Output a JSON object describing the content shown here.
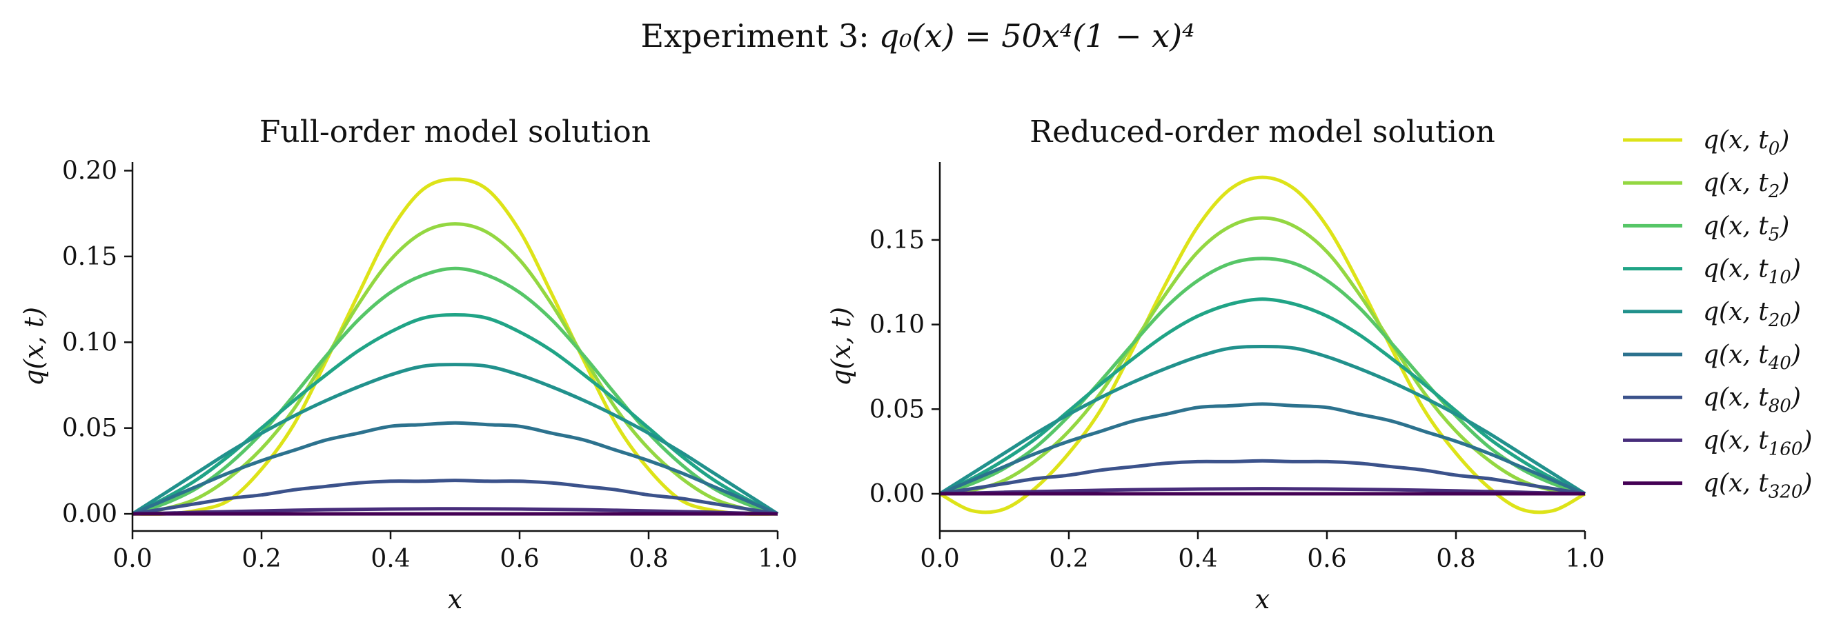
{
  "figure": {
    "suptitle": "Experiment 3:",
    "suptitle_formula": "q₀(x) = 50x⁴(1 − x)⁴"
  },
  "legend": {
    "location": "right, outside",
    "entries": [
      {
        "label": "q(x, t0)",
        "base": "q(x, t",
        "sub": "0",
        "color": "#dde318"
      },
      {
        "label": "q(x, t2)",
        "base": "q(x, t",
        "sub": "2",
        "color": "#93d741"
      },
      {
        "label": "q(x, t5)",
        "base": "q(x, t",
        "sub": "5",
        "color": "#56c667"
      },
      {
        "label": "q(x, t10)",
        "base": "q(x, t",
        "sub": "10",
        "color": "#20a486"
      },
      {
        "label": "q(x, t20)",
        "base": "q(x, t",
        "sub": "20",
        "color": "#21918c"
      },
      {
        "label": "q(x, t40)",
        "base": "q(x, t",
        "sub": "40",
        "color": "#2c728e"
      },
      {
        "label": "q(x, t80)",
        "base": "q(x, t",
        "sub": "80",
        "color": "#3b528b"
      },
      {
        "label": "q(x, t160)",
        "base": "q(x, t",
        "sub": "160",
        "color": "#472d7b"
      },
      {
        "label": "q(x, t320)",
        "base": "q(x, t",
        "sub": "320",
        "color": "#440154"
      }
    ]
  },
  "chart_data": [
    {
      "type": "line",
      "title": "Full-order model solution",
      "xlabel": "x",
      "ylabel": "q(x, t)",
      "xlim": [
        0.0,
        1.0
      ],
      "ylim": [
        -0.01,
        0.205
      ],
      "xticks": [
        "0.0",
        "0.2",
        "0.4",
        "0.6",
        "0.8",
        "1.0"
      ],
      "yticks": [
        "0.00",
        "0.05",
        "0.10",
        "0.15",
        "0.20"
      ],
      "x": [
        0.0,
        0.05,
        0.1,
        0.15,
        0.2,
        0.25,
        0.3,
        0.35,
        0.4,
        0.45,
        0.5,
        0.55,
        0.6,
        0.65,
        0.7,
        0.75,
        0.8,
        0.85,
        0.9,
        0.95,
        1.0
      ],
      "series": [
        {
          "name": "q(x, t0)",
          "values": [
            0.0,
            0.0,
            0.002,
            0.008,
            0.026,
            0.052,
            0.089,
            0.128,
            0.165,
            0.189,
            0.195,
            0.189,
            0.165,
            0.128,
            0.089,
            0.052,
            0.026,
            0.008,
            0.002,
            0.0,
            0.0
          ]
        },
        {
          "name": "q(x, t2)",
          "values": [
            0.0,
            0.003,
            0.009,
            0.021,
            0.038,
            0.061,
            0.091,
            0.122,
            0.148,
            0.164,
            0.169,
            0.164,
            0.148,
            0.122,
            0.091,
            0.061,
            0.038,
            0.021,
            0.009,
            0.003,
            0.0
          ]
        },
        {
          "name": "q(x, t5)",
          "values": [
            0.0,
            0.006,
            0.015,
            0.029,
            0.047,
            0.069,
            0.092,
            0.113,
            0.129,
            0.139,
            0.143,
            0.139,
            0.129,
            0.113,
            0.092,
            0.069,
            0.047,
            0.029,
            0.015,
            0.006,
            0.0
          ]
        },
        {
          "name": "q(x, t10)",
          "values": [
            0.0,
            0.009,
            0.02,
            0.034,
            0.05,
            0.066,
            0.081,
            0.095,
            0.106,
            0.114,
            0.116,
            0.114,
            0.106,
            0.095,
            0.081,
            0.066,
            0.05,
            0.034,
            0.02,
            0.009,
            0.0
          ]
        },
        {
          "name": "q(x, t20)",
          "values": [
            0.0,
            0.012,
            0.024,
            0.036,
            0.047,
            0.057,
            0.066,
            0.074,
            0.081,
            0.086,
            0.087,
            0.086,
            0.081,
            0.074,
            0.066,
            0.057,
            0.047,
            0.036,
            0.024,
            0.012,
            0.0
          ]
        },
        {
          "name": "q(x, t40)",
          "values": [
            0.0,
            0.008,
            0.016,
            0.024,
            0.031,
            0.037,
            0.043,
            0.047,
            0.051,
            0.052,
            0.053,
            0.052,
            0.051,
            0.047,
            0.043,
            0.037,
            0.031,
            0.024,
            0.016,
            0.008,
            0.0
          ]
        },
        {
          "name": "q(x, t80)",
          "values": [
            0.0,
            0.003,
            0.006,
            0.009,
            0.011,
            0.014,
            0.016,
            0.018,
            0.019,
            0.019,
            0.0195,
            0.019,
            0.019,
            0.018,
            0.016,
            0.014,
            0.011,
            0.009,
            0.006,
            0.003,
            0.0
          ]
        },
        {
          "name": "q(x, t160)",
          "values": [
            0.0,
            0.0004,
            0.0009,
            0.0013,
            0.0017,
            0.0021,
            0.0024,
            0.0026,
            0.0028,
            0.0029,
            0.003,
            0.0029,
            0.0028,
            0.0026,
            0.0024,
            0.0021,
            0.0017,
            0.0013,
            0.0009,
            0.0004,
            0.0
          ]
        },
        {
          "name": "q(x, t320)",
          "values": [
            0.0,
            0.0,
            0.0,
            0.0,
            0.0,
            0.0,
            0.0,
            0.0,
            0.0,
            0.0,
            0.0,
            0.0,
            0.0,
            0.0,
            0.0,
            0.0,
            0.0,
            0.0,
            0.0,
            0.0,
            0.0
          ]
        }
      ]
    },
    {
      "type": "line",
      "title": "Reduced-order model solution",
      "xlabel": "x",
      "ylabel": "q(x, t)",
      "xlim": [
        0.0,
        1.0
      ],
      "ylim": [
        -0.022,
        0.196
      ],
      "xticks": [
        "0.0",
        "0.2",
        "0.4",
        "0.6",
        "0.8",
        "1.0"
      ],
      "yticks": [
        "0.00",
        "0.05",
        "0.10",
        "0.15"
      ],
      "x": [
        0.0,
        0.05,
        0.1,
        0.15,
        0.2,
        0.25,
        0.3,
        0.35,
        0.4,
        0.45,
        0.5,
        0.55,
        0.6,
        0.65,
        0.7,
        0.75,
        0.8,
        0.85,
        0.9,
        0.95,
        1.0
      ],
      "series": [
        {
          "name": "q(x, t0)",
          "values": [
            0.0,
            -0.01,
            -0.009,
            0.004,
            0.024,
            0.05,
            0.086,
            0.124,
            0.158,
            0.18,
            0.187,
            0.18,
            0.158,
            0.124,
            0.086,
            0.05,
            0.024,
            0.004,
            -0.009,
            -0.01,
            0.0
          ]
        },
        {
          "name": "q(x, t2)",
          "values": [
            0.0,
            0.002,
            0.008,
            0.02,
            0.037,
            0.06,
            0.089,
            0.118,
            0.143,
            0.158,
            0.163,
            0.158,
            0.143,
            0.118,
            0.089,
            0.06,
            0.037,
            0.02,
            0.008,
            0.002,
            0.0
          ]
        },
        {
          "name": "q(x, t5)",
          "values": [
            0.0,
            0.006,
            0.015,
            0.028,
            0.046,
            0.067,
            0.089,
            0.11,
            0.126,
            0.136,
            0.139,
            0.136,
            0.126,
            0.11,
            0.089,
            0.067,
            0.046,
            0.028,
            0.015,
            0.006,
            0.0
          ]
        },
        {
          "name": "q(x, t10)",
          "values": [
            0.0,
            0.009,
            0.02,
            0.033,
            0.049,
            0.065,
            0.08,
            0.094,
            0.105,
            0.112,
            0.115,
            0.112,
            0.105,
            0.094,
            0.08,
            0.065,
            0.049,
            0.033,
            0.02,
            0.009,
            0.0
          ]
        },
        {
          "name": "q(x, t20)",
          "values": [
            0.0,
            0.012,
            0.024,
            0.036,
            0.047,
            0.057,
            0.066,
            0.074,
            0.081,
            0.086,
            0.087,
            0.086,
            0.081,
            0.074,
            0.066,
            0.057,
            0.047,
            0.036,
            0.024,
            0.012,
            0.0
          ]
        },
        {
          "name": "q(x, t40)",
          "values": [
            0.0,
            0.008,
            0.016,
            0.024,
            0.031,
            0.037,
            0.043,
            0.047,
            0.051,
            0.052,
            0.053,
            0.052,
            0.051,
            0.047,
            0.043,
            0.037,
            0.031,
            0.024,
            0.016,
            0.008,
            0.0
          ]
        },
        {
          "name": "q(x, t80)",
          "values": [
            0.0,
            0.003,
            0.006,
            0.009,
            0.011,
            0.014,
            0.016,
            0.018,
            0.019,
            0.019,
            0.0195,
            0.019,
            0.019,
            0.018,
            0.016,
            0.014,
            0.011,
            0.009,
            0.006,
            0.003,
            0.0
          ]
        },
        {
          "name": "q(x, t160)",
          "values": [
            0.0,
            0.0004,
            0.0009,
            0.0013,
            0.0017,
            0.0021,
            0.0024,
            0.0026,
            0.0028,
            0.0029,
            0.003,
            0.0029,
            0.0028,
            0.0026,
            0.0024,
            0.0021,
            0.0017,
            0.0013,
            0.0009,
            0.0004,
            0.0
          ]
        },
        {
          "name": "q(x, t320)",
          "values": [
            0.0,
            0.0,
            0.0,
            0.0,
            0.0,
            0.0,
            0.0,
            0.0,
            0.0,
            0.0,
            0.0,
            0.0,
            0.0,
            0.0,
            0.0,
            0.0,
            0.0,
            0.0,
            0.0,
            0.0,
            0.0
          ]
        }
      ]
    }
  ]
}
